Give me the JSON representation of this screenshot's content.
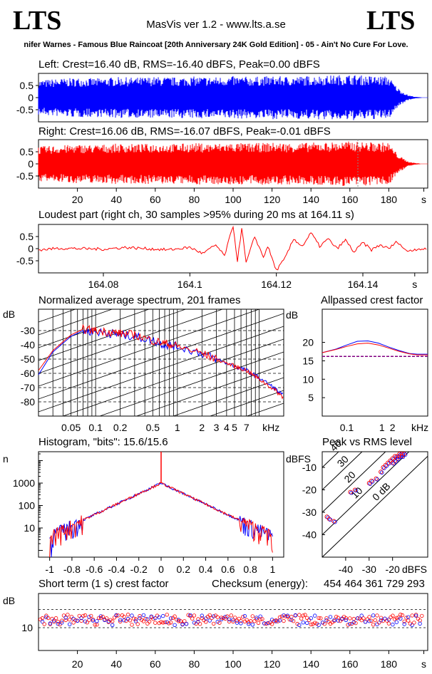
{
  "header": {
    "logo_left": "LTS",
    "logo_right": "LTS",
    "app_title": "MasVis ver 1.2 - www.lts.a.se",
    "track": "nifer Warnes - Famous Blue Raincoat [20th Anniversary 24K Gold Edition] - 05 - Ain't No Cure For Love."
  },
  "colors": {
    "left": "#0000ff",
    "right": "#ff0000",
    "grid": "#000000"
  },
  "chart_data": [
    {
      "id": "left",
      "type": "area",
      "title": "Left: Crest=16.40 dB, RMS=-16.40 dBFS, Peak=0.00 dBFS",
      "yticks": [
        "0.5",
        "0",
        "-0.5"
      ],
      "ylim": [
        -1,
        1
      ],
      "xlim": [
        0,
        200
      ],
      "envelope": [
        [
          0,
          0.72
        ],
        [
          10,
          0.78
        ],
        [
          20,
          0.82
        ],
        [
          30,
          0.8
        ],
        [
          40,
          0.85
        ],
        [
          50,
          0.83
        ],
        [
          60,
          0.86
        ],
        [
          70,
          0.84
        ],
        [
          80,
          0.87
        ],
        [
          90,
          0.85
        ],
        [
          100,
          0.88
        ],
        [
          110,
          0.86
        ],
        [
          120,
          0.89
        ],
        [
          130,
          0.87
        ],
        [
          140,
          0.9
        ],
        [
          150,
          0.92
        ],
        [
          160,
          0.95
        ],
        [
          170,
          0.9
        ],
        [
          180,
          0.88
        ],
        [
          183,
          0.55
        ],
        [
          186,
          0.3
        ],
        [
          190,
          0.1
        ],
        [
          194,
          0.03
        ],
        [
          197,
          0.01
        ]
      ]
    },
    {
      "id": "right",
      "type": "area",
      "title": "Right: Crest=16.06 dB, RMS=-16.07 dBFS, Peak=-0.01 dBFS",
      "yticks": [
        "0.5",
        "0",
        "-0.5"
      ],
      "ylim": [
        -1,
        1
      ],
      "xlim": [
        0,
        200
      ],
      "xticks": [
        "20",
        "40",
        "60",
        "80",
        "100",
        "120",
        "140",
        "160",
        "180",
        "s"
      ],
      "marker_x": 164.11,
      "envelope": [
        [
          0,
          0.72
        ],
        [
          10,
          0.76
        ],
        [
          20,
          0.8
        ],
        [
          30,
          0.79
        ],
        [
          40,
          0.83
        ],
        [
          50,
          0.82
        ],
        [
          60,
          0.84
        ],
        [
          70,
          0.83
        ],
        [
          80,
          0.86
        ],
        [
          90,
          0.84
        ],
        [
          100,
          0.87
        ],
        [
          110,
          0.85
        ],
        [
          120,
          0.88
        ],
        [
          130,
          0.86
        ],
        [
          140,
          0.88
        ],
        [
          150,
          0.9
        ],
        [
          160,
          0.93
        ],
        [
          170,
          0.9
        ],
        [
          180,
          0.88
        ],
        [
          183,
          0.55
        ],
        [
          186,
          0.3
        ],
        [
          190,
          0.1
        ],
        [
          194,
          0.03
        ],
        [
          197,
          0.01
        ]
      ]
    },
    {
      "id": "loudest",
      "type": "line",
      "title": "Loudest part (right ch, 30 samples >95% during 20 ms at 164.11 s)",
      "yticks": [
        "0.5",
        "0",
        "-0.5"
      ],
      "xticks": [
        "164.08",
        "164.1",
        "164.12",
        "164.14",
        "s"
      ],
      "xlim": [
        164.065,
        164.155
      ],
      "ylim": [
        -1,
        1
      ],
      "points": [
        [
          164.065,
          -0.05
        ],
        [
          164.07,
          0.02
        ],
        [
          164.075,
          0.0
        ],
        [
          164.08,
          -0.02
        ],
        [
          164.085,
          0.05
        ],
        [
          164.09,
          0.0
        ],
        [
          164.095,
          -0.05
        ],
        [
          164.1,
          0.05
        ],
        [
          164.103,
          -0.2
        ],
        [
          164.106,
          0.15
        ],
        [
          164.108,
          -0.3
        ],
        [
          164.11,
          0.95
        ],
        [
          164.111,
          -0.5
        ],
        [
          164.112,
          0.85
        ],
        [
          164.113,
          -0.6
        ],
        [
          164.115,
          0.5
        ],
        [
          164.117,
          -0.35
        ],
        [
          164.118,
          0.1
        ],
        [
          164.12,
          -0.9
        ],
        [
          164.122,
          -0.4
        ],
        [
          164.124,
          0.4
        ],
        [
          164.126,
          0.1
        ],
        [
          164.128,
          0.65
        ],
        [
          164.13,
          0.1
        ],
        [
          164.132,
          0.4
        ],
        [
          164.134,
          0.0
        ],
        [
          164.136,
          0.35
        ],
        [
          164.138,
          -0.15
        ],
        [
          164.14,
          0.25
        ],
        [
          164.142,
          -0.05
        ],
        [
          164.144,
          0.15
        ],
        [
          164.146,
          0.0
        ],
        [
          164.148,
          0.3
        ],
        [
          164.15,
          -0.1
        ],
        [
          164.153,
          0.0
        ],
        [
          164.155,
          -0.05
        ]
      ]
    },
    {
      "id": "spectrum",
      "type": "line",
      "title": "Normalized average spectrum, 201 frames",
      "ylabel": "dB",
      "yticks": [
        "-30",
        "-40",
        "-50",
        "-60",
        "-70",
        "-80"
      ],
      "ylim": [
        -90,
        -15
      ],
      "xticks": [
        "0.05",
        "0.1",
        "0.2",
        "0.5",
        "1",
        "2",
        "3",
        "4",
        "5",
        "7",
        "kHz"
      ],
      "xlim": [
        0.02,
        20
      ],
      "series": [
        {
          "color": "#0000ff",
          "points": [
            [
              0.02,
              -61
            ],
            [
              0.03,
              -45
            ],
            [
              0.05,
              -34
            ],
            [
              0.07,
              -30
            ],
            [
              0.1,
              -31
            ],
            [
              0.15,
              -32
            ],
            [
              0.2,
              -33
            ],
            [
              0.3,
              -34
            ],
            [
              0.5,
              -37
            ],
            [
              0.7,
              -40
            ],
            [
              1,
              -41
            ],
            [
              2,
              -46
            ],
            [
              3,
              -50
            ],
            [
              5,
              -55
            ],
            [
              7,
              -58
            ],
            [
              10,
              -63
            ],
            [
              15,
              -70
            ],
            [
              20,
              -76
            ]
          ]
        },
        {
          "color": "#ff0000",
          "points": [
            [
              0.02,
              -58
            ],
            [
              0.03,
              -44
            ],
            [
              0.05,
              -33
            ],
            [
              0.07,
              -29
            ],
            [
              0.1,
              -30
            ],
            [
              0.15,
              -31
            ],
            [
              0.2,
              -32
            ],
            [
              0.3,
              -33
            ],
            [
              0.5,
              -37
            ],
            [
              0.7,
              -39
            ],
            [
              1,
              -41
            ],
            [
              2,
              -46
            ],
            [
              3,
              -50
            ],
            [
              5,
              -55
            ],
            [
              7,
              -58
            ],
            [
              10,
              -64
            ],
            [
              15,
              -71
            ],
            [
              20,
              -77
            ]
          ]
        }
      ]
    },
    {
      "id": "allpass",
      "type": "line",
      "title": "Allpassed crest factor",
      "ylabel": "dB",
      "yticks": [
        "20",
        "15",
        "10",
        "5"
      ],
      "ylim": [
        0,
        29
      ],
      "xticks": [
        "0.1",
        "1",
        "2",
        "kHz"
      ],
      "xlim": [
        0.02,
        20
      ],
      "reference": 16.2,
      "series": [
        {
          "color": "#0000ff",
          "points": [
            [
              0.02,
              17.2
            ],
            [
              0.05,
              18.2
            ],
            [
              0.1,
              19.3
            ],
            [
              0.2,
              20.3
            ],
            [
              0.4,
              20.4
            ],
            [
              0.8,
              19.8
            ],
            [
              1.5,
              18.8
            ],
            [
              3,
              17.8
            ],
            [
              6,
              17.0
            ],
            [
              10,
              16.8
            ],
            [
              20,
              16.8
            ]
          ]
        },
        {
          "color": "#ff0000",
          "points": [
            [
              0.02,
              17.2
            ],
            [
              0.05,
              18.1
            ],
            [
              0.1,
              18.9
            ],
            [
              0.2,
              19.6
            ],
            [
              0.4,
              19.8
            ],
            [
              0.8,
              19.3
            ],
            [
              1.5,
              18.5
            ],
            [
              3,
              17.6
            ],
            [
              6,
              16.9
            ],
            [
              10,
              16.6
            ],
            [
              20,
              16.6
            ]
          ]
        }
      ]
    },
    {
      "id": "histogram",
      "type": "line",
      "title": "Histogram, \"bits\": 15.6/15.6",
      "ylabel": "n",
      "yticks": [
        "1000",
        "100",
        "10"
      ],
      "xticks": [
        "-1",
        "-0.8",
        "-0.6",
        "-0.4",
        "-0.2",
        "0",
        "0.2",
        "0.4",
        "0.6",
        "0.8",
        "1"
      ],
      "xlim": [
        -1.1,
        1.1
      ],
      "ylog": [
        0.5,
        25000
      ],
      "peak": 1000
    },
    {
      "id": "peakrms",
      "type": "scatter",
      "title": "Peak vs RMS level",
      "ylabel": "dBFS",
      "xlabel": "dBFS",
      "yticks": [
        "-10",
        "-20",
        "-30",
        "-40"
      ],
      "xticks": [
        "-40",
        "-30",
        "-20"
      ],
      "diag_labels": [
        "40",
        "30",
        "20",
        "10",
        "0 dB"
      ],
      "xlim": [
        -50,
        -5
      ],
      "ylim": [
        -50,
        -3
      ],
      "points": [
        [
          -48,
          -32
        ],
        [
          -47,
          -33
        ],
        [
          -45,
          -34
        ],
        [
          -38,
          -21
        ],
        [
          -36,
          -20
        ],
        [
          -30,
          -17
        ],
        [
          -29,
          -16
        ],
        [
          -27,
          -15
        ],
        [
          -25,
          -12
        ],
        [
          -24,
          -10
        ],
        [
          -23,
          -9
        ],
        [
          -22,
          -8
        ],
        [
          -21,
          -7
        ],
        [
          -20,
          -6
        ],
        [
          -19,
          -5
        ],
        [
          -18,
          -6
        ],
        [
          -17,
          -5
        ],
        [
          -16,
          -4
        ],
        [
          -20,
          -8
        ],
        [
          -19,
          -7
        ],
        [
          -18,
          -5
        ],
        [
          -17,
          -4
        ],
        [
          -16,
          -5
        ],
        [
          -15,
          -4
        ]
      ]
    },
    {
      "id": "shortcrest",
      "type": "scatter",
      "title": "Short term (1 s) crest factor",
      "checksum_label": "Checksum (energy):",
      "checksum": "454 464 361 729 293",
      "ylabel": "dB",
      "yticks": [
        "10"
      ],
      "ylim": [
        0,
        25
      ],
      "xlim": [
        0,
        200
      ],
      "xticks": [
        "20",
        "40",
        "60",
        "80",
        "100",
        "120",
        "140",
        "160",
        "180",
        "s"
      ]
    }
  ]
}
